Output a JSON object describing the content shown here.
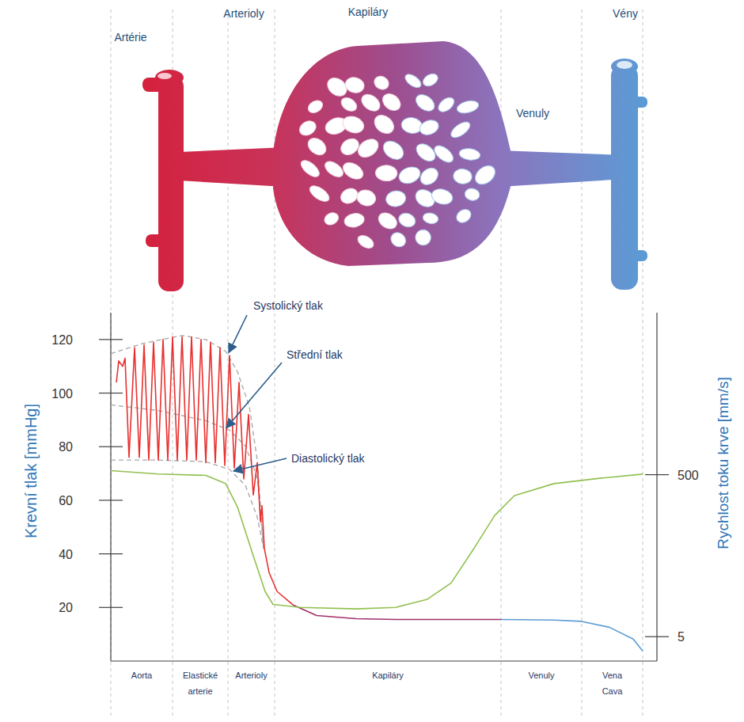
{
  "diagram": {
    "labels": [
      "Artérie",
      "Arterioly",
      "Kapiláry",
      "Venuly",
      "Vény"
    ]
  },
  "chart_data": {
    "type": "line",
    "y_label": "Krevní tlak [mmHg]",
    "y2_label": "Rychlost toku krve [mm/s]",
    "categories": [
      "Aorta",
      "Elastické arterie",
      "Arterioly",
      "Kapiláry",
      "Venuly",
      "Vena Cava"
    ],
    "category_edges": [
      0,
      78,
      148,
      207,
      493,
      595,
      672
    ],
    "xlim": [
      0,
      690
    ],
    "ylim": [
      0,
      130
    ],
    "yticks": [
      20,
      40,
      60,
      80,
      100,
      120
    ],
    "y2lim": [
      2.5,
      50000
    ],
    "y2ticks": [
      5,
      500
    ],
    "log": "y2",
    "grid": false,
    "series": [
      {
        "name": "Systolický tlak",
        "type": "line",
        "color": "#a6a6a6",
        "line_style": "dashed",
        "x": [
          0,
          40,
          90,
          120,
          145,
          160,
          175,
          185,
          193
        ],
        "values": [
          114.7,
          118.5,
          121.5,
          120,
          115.6,
          108,
          95,
          75,
          42
        ]
      },
      {
        "name": "Střední tlak",
        "type": "line",
        "color": "#a6a6a6",
        "line_style": "dashed",
        "x": [
          0,
          60,
          120,
          150,
          170,
          185,
          193
        ],
        "values": [
          95.6,
          93.5,
          89.7,
          86.2,
          80.3,
          68.5,
          42
        ]
      },
      {
        "name": "Diastolický tlak",
        "type": "line",
        "color": "#a6a6a6",
        "line_style": "dashed",
        "x": [
          0,
          60,
          120,
          150,
          170,
          185,
          193
        ],
        "values": [
          75,
          75,
          74.4,
          71.5,
          65.6,
          53.8,
          42
        ]
      },
      {
        "type": "line",
        "color": "#e8312f",
        "line_style": "solid",
        "x": [
          7,
          10,
          15,
          18,
          23,
          30,
          36,
          42,
          48,
          54,
          60,
          66,
          72,
          78,
          84,
          90,
          96,
          102,
          108,
          114,
          120,
          126,
          132,
          138,
          144,
          150,
          156,
          162,
          168,
          174,
          180,
          185,
          189,
          191,
          194,
          200,
          210,
          230
        ],
        "values": [
          104,
          112,
          110,
          113,
          76,
          117,
          76,
          118,
          75,
          119,
          75,
          120,
          75,
          121,
          75,
          121,
          75,
          121,
          75,
          120,
          74,
          119,
          74,
          117,
          73,
          114,
          72,
          104,
          68,
          92,
          62,
          74,
          52,
          58,
          42,
          33,
          26,
          21
        ]
      },
      {
        "type": "line",
        "color": "#a0306a",
        "line_style": "solid",
        "x": [
          230,
          260,
          310,
          360,
          493
        ],
        "values": [
          21,
          17,
          15.8,
          15.5,
          15.5
        ]
      },
      {
        "type": "line",
        "color": "#5b9bd5",
        "line_style": "solid",
        "x": [
          493,
          560,
          595,
          630,
          660,
          672
        ],
        "values": [
          15.5,
          15.3,
          14.8,
          12.6,
          8.2,
          3.8
        ]
      },
      {
        "type": "line",
        "color": "#92c050",
        "line_style": "solid",
        "axis": "y2",
        "x": [
          0,
          60,
          120,
          145,
          160,
          180,
          195,
          205,
          240,
          310,
          360,
          400,
          430,
          460,
          485,
          510,
          560,
          620,
          672
        ],
        "values": [
          560,
          510,
          490,
          390,
          200,
          50,
          18,
          12.5,
          11.5,
          11,
          11.5,
          14.5,
          23,
          64,
          157,
          276,
          388,
          454,
          508
        ]
      }
    ]
  }
}
